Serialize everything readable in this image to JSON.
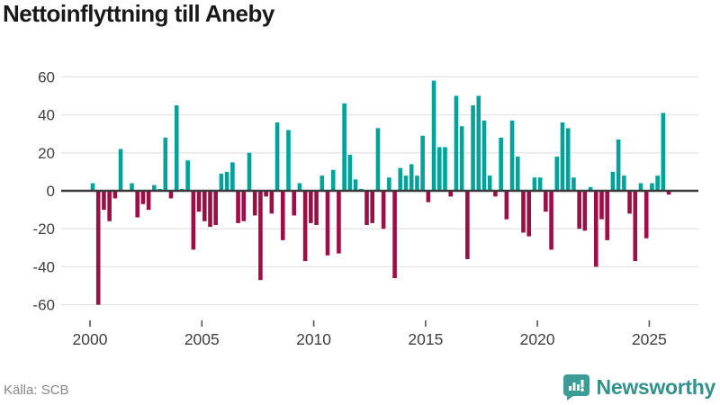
{
  "header": {
    "title": "Nettoinflyttning till Aneby"
  },
  "footer": {
    "source_label": "Källa: SCB",
    "brand": "Newsworthy"
  },
  "colors": {
    "positive": "#00A39B",
    "negative": "#9E0D45",
    "grid": "#E5E5E5",
    "zero_line": "#3A3A3C",
    "tick_text": "#404040",
    "tick_mark": "#555555",
    "source_text": "#878787",
    "brand_teal": "#33908C",
    "brand_icon": "#3C9D96"
  },
  "chart_data": {
    "type": "bar",
    "title": "Nettoinflyttning till Aneby",
    "xlabel": "",
    "ylabel": "",
    "x_unit": "quarter",
    "ylim": [
      -62,
      62
    ],
    "y_ticks": [
      60,
      40,
      20,
      0,
      -20,
      -40,
      -60
    ],
    "x_tick_labels": [
      "2000",
      "2005",
      "2010",
      "2015",
      "2020",
      "2025"
    ],
    "grid": true,
    "legend": false,
    "years": [
      {
        "year": 2000,
        "values": [
          4,
          -60,
          -10,
          -16
        ]
      },
      {
        "year": 2001,
        "values": [
          -4,
          22,
          0,
          4
        ]
      },
      {
        "year": 2002,
        "values": [
          -14,
          -7,
          -10,
          3
        ]
      },
      {
        "year": 2003,
        "values": [
          1,
          28,
          -4,
          45
        ]
      },
      {
        "year": 2004,
        "values": [
          1,
          16,
          -31,
          -11
        ]
      },
      {
        "year": 2005,
        "values": [
          -16,
          -19,
          -18,
          9
        ]
      },
      {
        "year": 2006,
        "values": [
          10,
          15,
          -17,
          -16
        ]
      },
      {
        "year": 2007,
        "values": [
          20,
          -13,
          -47,
          -3
        ]
      },
      {
        "year": 2008,
        "values": [
          -12,
          36,
          -26,
          32
        ]
      },
      {
        "year": 2009,
        "values": [
          -13,
          4,
          -37,
          -17
        ]
      },
      {
        "year": 2010,
        "values": [
          -18,
          8,
          -34,
          11
        ]
      },
      {
        "year": 2011,
        "values": [
          -33,
          46,
          19,
          6
        ]
      },
      {
        "year": 2012,
        "values": [
          1,
          -18,
          -17,
          33
        ]
      },
      {
        "year": 2013,
        "values": [
          -20,
          7,
          -46,
          12
        ]
      },
      {
        "year": 2014,
        "values": [
          8,
          14,
          8,
          29
        ]
      },
      {
        "year": 2015,
        "values": [
          -6,
          58,
          23,
          23
        ]
      },
      {
        "year": 2016,
        "values": [
          -3,
          50,
          34,
          -36
        ]
      },
      {
        "year": 2017,
        "values": [
          45,
          50,
          37,
          8
        ]
      },
      {
        "year": 2018,
        "values": [
          -3,
          28,
          -15,
          37
        ]
      },
      {
        "year": 2019,
        "values": [
          18,
          -22,
          -24,
          7
        ]
      },
      {
        "year": 2020,
        "values": [
          7,
          -11,
          -31,
          18
        ]
      },
      {
        "year": 2021,
        "values": [
          36,
          33,
          7,
          -20
        ]
      },
      {
        "year": 2022,
        "values": [
          -21,
          2,
          -40,
          -15
        ]
      },
      {
        "year": 2023,
        "values": [
          -26,
          10,
          27,
          8
        ]
      },
      {
        "year": 2024,
        "values": [
          -12,
          -37,
          4,
          -25
        ]
      },
      {
        "year": 2025,
        "values": [
          4,
          8,
          41,
          -2
        ]
      }
    ]
  }
}
